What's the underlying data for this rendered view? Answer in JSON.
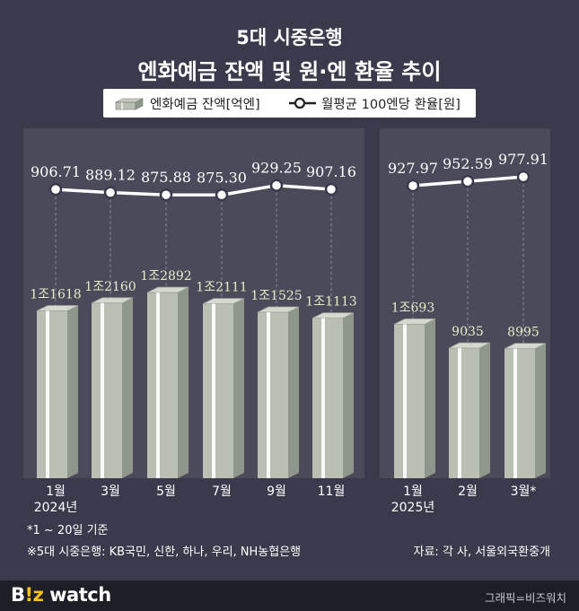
{
  "title_line1": "5대 시중은행",
  "title_line2": "엔화예금 잔액 및 원·엔 환율 추이",
  "legend": {
    "bar_label": "엔화예금 잔액[억엔]",
    "line_label": "월평균 100엔당 환율[원]"
  },
  "chart_data": {
    "type": "bar",
    "x": [
      "1월",
      "3월",
      "5월",
      "7월",
      "9월",
      "11월",
      "1월",
      "2월",
      "3월*"
    ],
    "x_group_labels": [
      "2024년",
      "2025년"
    ],
    "groups": [
      {
        "year": "2024년",
        "indices": [
          0,
          1,
          2,
          3,
          4,
          5
        ]
      },
      {
        "year": "2025년",
        "indices": [
          6,
          7,
          8
        ]
      }
    ],
    "series": [
      {
        "name": "엔화예금 잔액[억엔]",
        "type": "bar",
        "values": [
          11618,
          12160,
          12892,
          12111,
          11525,
          11113,
          10693,
          9035,
          8995
        ],
        "labels": [
          "1조1618",
          "1조2160",
          "1조2892",
          "1조2111",
          "1조1525",
          "1조1113",
          "1조693",
          "9035",
          "8995"
        ]
      },
      {
        "name": "월평균 100엔당 환율[원]",
        "type": "line",
        "values": [
          906.71,
          889.12,
          875.88,
          875.3,
          929.25,
          907.16,
          927.97,
          952.59,
          977.91
        ],
        "labels": [
          "906.71",
          "889.12",
          "875.88",
          "875.30",
          "929.25",
          "907.16",
          "927.97",
          "952.59",
          "977.91"
        ]
      }
    ]
  },
  "footnotes": {
    "note1": "*1 ~ 20일 기준",
    "note2": "※5대 시중은행: KB국민, 신한, 하나, 우리, NH농협은행",
    "source": "자료: 각 사, 서울외국환중개"
  },
  "footer": {
    "brand_part1": "B",
    "brand_part2": "!z",
    "brand_part3": " watch",
    "credit": "그래픽=비즈워치"
  },
  "colors": {
    "background": "#3a3a4c",
    "panel": "#4a4a5a",
    "bar_front": "#b9bfb3",
    "bar_side": "#8f968c",
    "bar_top": "#d4d8cf",
    "bar_value_label": "#e6ecc8",
    "line": "#ffffff",
    "brand_accent": "#f4c21b"
  }
}
